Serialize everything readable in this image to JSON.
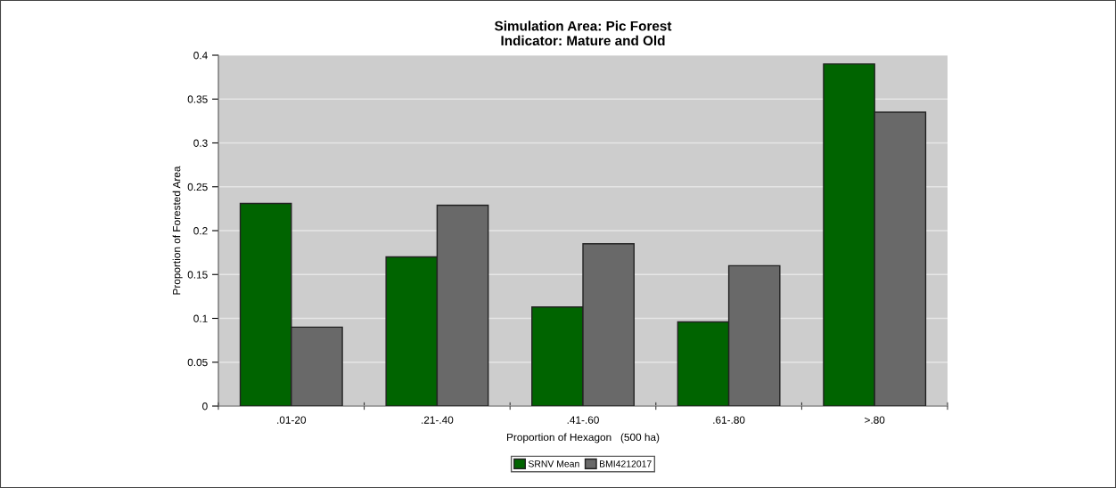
{
  "chart_data": {
    "type": "bar",
    "title": "Simulation Area: Pic Forest\nIndicator: Mature and Old",
    "xlabel": "Proportion of Hexagon   (500 ha)",
    "ylabel": "Proportion of Forested Area",
    "categories": [
      ".01-20",
      ".21-.40",
      ".41-.60",
      ".61-.80",
      ">.80"
    ],
    "series": [
      {
        "name": "SRNV Mean",
        "color": "#006400",
        "values": [
          0.231,
          0.17,
          0.113,
          0.096,
          0.39
        ]
      },
      {
        "name": "BMI4212017",
        "color": "#696969",
        "values": [
          0.09,
          0.229,
          0.185,
          0.16,
          0.335
        ]
      }
    ],
    "ylim": [
      0,
      0.4
    ],
    "yticks": [
      0,
      0.05,
      0.1,
      0.15,
      0.2,
      0.25,
      0.3,
      0.35,
      0.4
    ],
    "grid": "y",
    "legend": "bottom"
  }
}
